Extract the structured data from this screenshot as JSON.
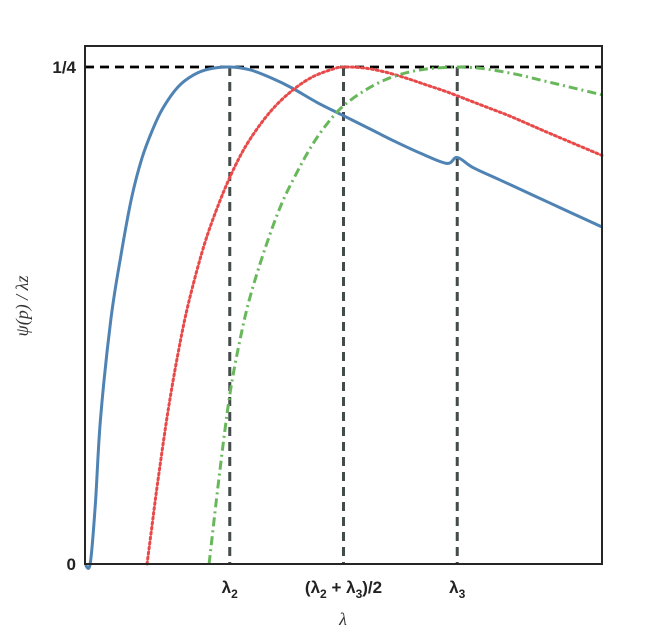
{
  "chart_data": {
    "type": "line",
    "xlabel": "λ",
    "ylabel": "ψ(p) / λz",
    "xlim": [
      0,
      10
    ],
    "ylim": [
      0,
      0.25
    ],
    "y_ticks": [
      {
        "value": 0,
        "label": "0"
      },
      {
        "value": 0.25,
        "label": "1/4"
      }
    ],
    "x_ticks": [
      {
        "value": 2.8,
        "label_main": "λ",
        "label_sub": "2",
        "label_text": "λ2"
      },
      {
        "value": 5.0,
        "label_main": "(λ2 + λ3)/2",
        "label_text": "(λ2 + λ3)/2"
      },
      {
        "value": 7.2,
        "label_main": "λ",
        "label_sub": "3",
        "label_text": "λ3"
      }
    ],
    "reference_lines": [
      {
        "orientation": "horizontal",
        "value": 0.25,
        "color": "#000000",
        "style": "dashed"
      },
      {
        "orientation": "vertical",
        "value": 2.8,
        "color": "#444b4b",
        "style": "dashed"
      },
      {
        "orientation": "vertical",
        "value": 5.0,
        "color": "#444b4b",
        "style": "dashed"
      },
      {
        "orientation": "vertical",
        "value": 7.2,
        "color": "#444b4b",
        "style": "dashed"
      }
    ],
    "series": [
      {
        "style": "solid",
        "color": "#4f83b4",
        "x": [
          0.0,
          0.1,
          0.2,
          0.3,
          0.5,
          0.7,
          0.9,
          1.1,
          1.3,
          1.5,
          1.8,
          2.1,
          2.4,
          2.8,
          3.2,
          3.6,
          4.0,
          4.5,
          5.0,
          5.5,
          6.0,
          6.5,
          7.0,
          7.2,
          7.5,
          8.0,
          8.5,
          9.0,
          9.5,
          10.0
        ],
        "y": [
          0.0,
          0.0,
          0.03,
          0.073,
          0.123,
          0.156,
          0.184,
          0.204,
          0.218,
          0.229,
          0.24,
          0.246,
          0.249,
          0.25,
          0.2485,
          0.2445,
          0.2395,
          0.232,
          0.2255,
          0.219,
          0.2125,
          0.2065,
          0.2015,
          0.2045,
          0.1995,
          0.1935,
          0.1875,
          0.1815,
          0.1755,
          0.1695
        ]
      },
      {
        "style": "dotted",
        "color": "#e84a4a",
        "x": [
          1.2,
          1.3,
          1.4,
          1.6,
          1.8,
          2.0,
          2.3,
          2.6,
          2.9,
          3.2,
          3.6,
          4.0,
          4.4,
          4.8,
          5.0,
          5.4,
          5.8,
          6.2,
          6.6,
          7.0,
          7.4,
          7.8,
          8.2,
          8.6,
          9.0,
          9.5,
          10.0
        ],
        "y": [
          0.0,
          0.02,
          0.04,
          0.076,
          0.106,
          0.131,
          0.16,
          0.182,
          0.2,
          0.214,
          0.228,
          0.238,
          0.245,
          0.249,
          0.25,
          0.2495,
          0.2475,
          0.2445,
          0.241,
          0.2375,
          0.2335,
          0.2295,
          0.2255,
          0.221,
          0.2165,
          0.211,
          0.2055
        ]
      },
      {
        "style": "dashdot",
        "color": "#68b85b",
        "x": [
          2.4,
          2.6,
          2.8,
          3.0,
          3.2,
          3.5,
          3.8,
          4.1,
          4.4,
          4.7,
          5.0,
          5.4,
          5.8,
          6.2,
          6.6,
          7.0,
          7.2,
          7.6,
          8.0,
          8.4,
          8.8,
          9.2,
          9.6,
          10.0
        ],
        "y": [
          0.0,
          0.045,
          0.085,
          0.113,
          0.135,
          0.16,
          0.181,
          0.197,
          0.211,
          0.222,
          0.2305,
          0.238,
          0.2435,
          0.247,
          0.249,
          0.2498,
          0.25,
          0.2495,
          0.248,
          0.246,
          0.2435,
          0.241,
          0.2385,
          0.236
        ]
      }
    ],
    "grid": false,
    "legend": "none"
  }
}
